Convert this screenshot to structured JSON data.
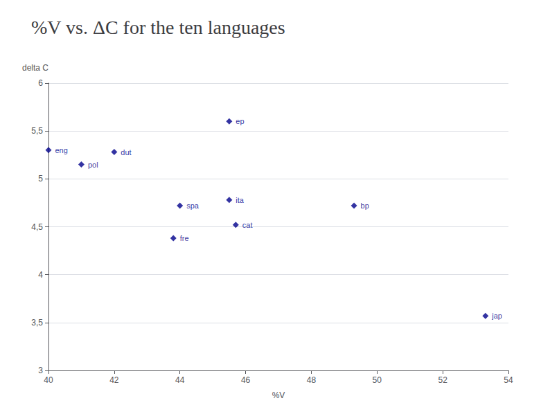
{
  "chart_data": {
    "type": "scatter",
    "title": "%V vs. ΔC for the ten languages",
    "x_label": "%V",
    "y_label": "delta C",
    "x": [
      45.5,
      40.0,
      42.0,
      41.0,
      44.0,
      45.5,
      43.8,
      45.7,
      49.3,
      53.3
    ],
    "values": [
      5.6,
      5.3,
      5.28,
      5.15,
      4.72,
      4.78,
      4.38,
      4.52,
      4.72,
      3.57
    ],
    "labels": [
      "ep",
      "eng",
      "dut",
      "pol",
      "spa",
      "ita",
      "fre",
      "cat",
      "bp",
      "jap"
    ],
    "color": "#00008B",
    "marker": "diamond",
    "xlim": [
      40,
      54
    ],
    "ylim": [
      3,
      6
    ],
    "xticks": [
      40,
      42,
      44,
      46,
      48,
      50,
      52,
      54
    ],
    "yticks": [
      3,
      {
        "value": 3.5,
        "label": "3,5"
      },
      4,
      {
        "value": 4.5,
        "label": "4,5"
      },
      5,
      {
        "value": 5.5,
        "label": "5,5"
      },
      6
    ],
    "grid": "y"
  }
}
